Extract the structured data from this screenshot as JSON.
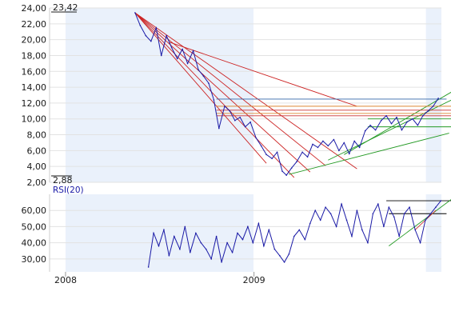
{
  "chart_data": [
    {
      "type": "line",
      "panel": "price",
      "ylim": [
        2,
        24
      ],
      "y_ticks": [
        "24,00",
        "22,00",
        "20,00",
        "18,00",
        "16,00",
        "14,00",
        "12,00",
        "10,00",
        "8,00",
        "6,00",
        "4,00",
        "2,00"
      ],
      "y_tick_values": [
        24,
        22,
        20,
        18,
        16,
        14,
        12,
        10,
        8,
        6,
        4,
        2
      ],
      "max_label": "23,42",
      "min_label": "2,88",
      "x_ticks": [
        "2008",
        "2009"
      ],
      "grid": true,
      "x_range": [
        "2007-12-01",
        "2009-12-31"
      ],
      "shaded_ranges": [
        [
          "2008-01-01",
          "2008-12-31"
        ],
        [
          "2009-12-01",
          "2009-12-31"
        ]
      ],
      "series": [
        {
          "color": "#1a1aa6",
          "x": [
            "2008-05-15",
            "2008-05-25",
            "2008-06-05",
            "2008-06-15",
            "2008-06-25",
            "2008-07-05",
            "2008-07-15",
            "2008-07-25",
            "2008-08-05",
            "2008-08-15",
            "2008-08-25",
            "2008-09-05",
            "2008-09-15",
            "2008-09-25",
            "2008-10-05",
            "2008-10-15",
            "2008-10-25",
            "2008-11-05",
            "2008-11-15",
            "2008-11-25",
            "2008-12-05",
            "2008-12-15",
            "2008-12-25",
            "2009-01-05",
            "2009-01-15",
            "2009-01-25",
            "2009-02-05",
            "2009-02-15",
            "2009-02-25",
            "2009-03-05",
            "2009-03-15",
            "2009-03-25",
            "2009-04-05",
            "2009-04-15",
            "2009-04-25",
            "2009-05-05",
            "2009-05-15",
            "2009-05-25",
            "2009-06-05",
            "2009-06-15",
            "2009-06-25",
            "2009-07-05",
            "2009-07-15",
            "2009-07-25",
            "2009-08-05",
            "2009-08-15",
            "2009-08-25",
            "2009-09-05",
            "2009-09-15",
            "2009-09-25",
            "2009-10-05",
            "2009-10-15",
            "2009-10-25",
            "2009-11-05",
            "2009-11-15",
            "2009-11-25",
            "2009-12-05",
            "2009-12-15",
            "2009-12-25"
          ],
          "values": [
            23.4,
            21.8,
            20.5,
            19.8,
            21.5,
            18.0,
            20.5,
            19.0,
            17.6,
            18.8,
            17.0,
            18.6,
            16.2,
            15.4,
            14.5,
            12.4,
            8.8,
            11.6,
            11.0,
            9.8,
            10.2,
            9.0,
            9.6,
            7.6,
            6.6,
            5.5,
            5.0,
            5.8,
            3.4,
            2.9,
            3.8,
            4.6,
            5.8,
            5.2,
            6.8,
            6.4,
            7.2,
            6.6,
            7.4,
            6.0,
            7.0,
            5.6,
            7.2,
            6.4,
            8.5,
            9.2,
            8.6,
            9.8,
            10.4,
            9.4,
            10.2,
            8.6,
            9.6,
            10.0,
            9.2,
            10.4,
            11.0,
            11.6,
            12.6
          ]
        }
      ],
      "trendlines": [
        {
          "color": "#cc2222",
          "x": [
            "2008-05-15",
            "2009-01-25"
          ],
          "y": [
            23.4,
            4.4
          ]
        },
        {
          "color": "#cc2222",
          "x": [
            "2008-05-15",
            "2009-03-20"
          ],
          "y": [
            23.4,
            2.6
          ]
        },
        {
          "color": "#cc2222",
          "x": [
            "2008-05-15",
            "2009-04-20"
          ],
          "y": [
            23.4,
            3.3
          ]
        },
        {
          "color": "#cc2222",
          "x": [
            "2008-05-15",
            "2009-05-20"
          ],
          "y": [
            23.4,
            4.1
          ]
        },
        {
          "color": "#cc2222",
          "x": [
            "2008-05-15",
            "2009-07-20"
          ],
          "y": [
            23.4,
            3.7
          ]
        },
        {
          "color": "#cc2222",
          "x": [
            "2008-07-20",
            "2009-07-20"
          ],
          "y": [
            19.7,
            11.6
          ]
        },
        {
          "color": "#229922",
          "x": [
            "2009-03-10",
            "2010-01-15"
          ],
          "y": [
            3.0,
            8.2
          ]
        },
        {
          "color": "#229922",
          "x": [
            "2009-05-25",
            "2010-01-20"
          ],
          "y": [
            4.8,
            12.4
          ]
        },
        {
          "color": "#229922",
          "x": [
            "2009-06-25",
            "2010-01-25"
          ],
          "y": [
            5.5,
            13.6
          ]
        },
        {
          "color": "#229922",
          "x": [
            "2009-08-10",
            "2010-01-20"
          ],
          "y": [
            9.0,
            9.0
          ]
        },
        {
          "color": "#229922",
          "x": [
            "2009-08-10",
            "2010-01-20"
          ],
          "y": [
            10.0,
            10.0
          ]
        },
        {
          "color": "#3366aa",
          "x": [
            "2008-10-20",
            "2010-01-10"
          ],
          "y": [
            12.5,
            12.5
          ]
        },
        {
          "color": "#dd8833",
          "x": [
            "2008-10-20",
            "2010-01-20"
          ],
          "y": [
            11.6,
            11.6
          ]
        },
        {
          "color": "#cc3333",
          "x": [
            "2008-10-20",
            "2010-01-20"
          ],
          "y": [
            11.1,
            11.1
          ]
        },
        {
          "color": "#dd8833",
          "x": [
            "2008-10-20",
            "2010-01-20"
          ],
          "y": [
            10.7,
            10.7
          ]
        },
        {
          "color": "#cc3333",
          "x": [
            "2008-10-20",
            "2010-01-20"
          ],
          "y": [
            10.4,
            10.4
          ]
        }
      ]
    },
    {
      "type": "line",
      "panel": "rsi",
      "title": "RSI(20)",
      "ylim": [
        22,
        70
      ],
      "y_ticks": [
        "60,00",
        "50,00",
        "40,00",
        "30,00"
      ],
      "y_tick_values": [
        60,
        50,
        40,
        30
      ],
      "x_ticks": [
        "2008",
        "2009"
      ],
      "grid": true,
      "series": [
        {
          "color": "#1a1aa6",
          "x": [
            "2008-06-10",
            "2008-06-20",
            "2008-06-30",
            "2008-07-10",
            "2008-07-20",
            "2008-07-30",
            "2008-08-10",
            "2008-08-20",
            "2008-08-30",
            "2008-09-10",
            "2008-09-20",
            "2008-09-30",
            "2008-10-10",
            "2008-10-20",
            "2008-10-30",
            "2008-11-10",
            "2008-11-20",
            "2008-11-30",
            "2008-12-10",
            "2008-12-20",
            "2008-12-30",
            "2009-01-10",
            "2009-01-20",
            "2009-01-30",
            "2009-02-10",
            "2009-02-20",
            "2009-03-01",
            "2009-03-10",
            "2009-03-20",
            "2009-03-30",
            "2009-04-10",
            "2009-04-20",
            "2009-04-30",
            "2009-05-10",
            "2009-05-20",
            "2009-05-30",
            "2009-06-10",
            "2009-06-20",
            "2009-06-30",
            "2009-07-10",
            "2009-07-20",
            "2009-07-30",
            "2009-08-10",
            "2009-08-20",
            "2009-08-30",
            "2009-09-10",
            "2009-09-20",
            "2009-09-30",
            "2009-10-10",
            "2009-10-20",
            "2009-10-30",
            "2009-11-10",
            "2009-11-20",
            "2009-11-30",
            "2009-12-10",
            "2009-12-20",
            "2009-12-30"
          ],
          "values": [
            25,
            46,
            38,
            48,
            32,
            44,
            36,
            50,
            34,
            46,
            40,
            36,
            30,
            44,
            28,
            40,
            34,
            46,
            42,
            50,
            40,
            52,
            38,
            48,
            36,
            32,
            28,
            33,
            44,
            48,
            42,
            52,
            60,
            54,
            62,
            58,
            50,
            64,
            54,
            44,
            60,
            48,
            40,
            58,
            64,
            50,
            62,
            56,
            44,
            58,
            62,
            48,
            40,
            54,
            58,
            62,
            66
          ]
        }
      ],
      "trendlines": [
        {
          "color": "#000000",
          "x": [
            "2009-09-15",
            "2010-01-20"
          ],
          "y": [
            66,
            66
          ]
        },
        {
          "color": "#000000",
          "x": [
            "2009-09-20",
            "2010-01-10"
          ],
          "y": [
            58,
            58
          ]
        },
        {
          "color": "#229922",
          "x": [
            "2009-09-20",
            "2010-01-20"
          ],
          "y": [
            38,
            67
          ]
        },
        {
          "color": "#cc3333",
          "x": [
            "2009-11-10",
            "2009-12-20"
          ],
          "y": [
            48,
            60
          ]
        }
      ]
    }
  ]
}
